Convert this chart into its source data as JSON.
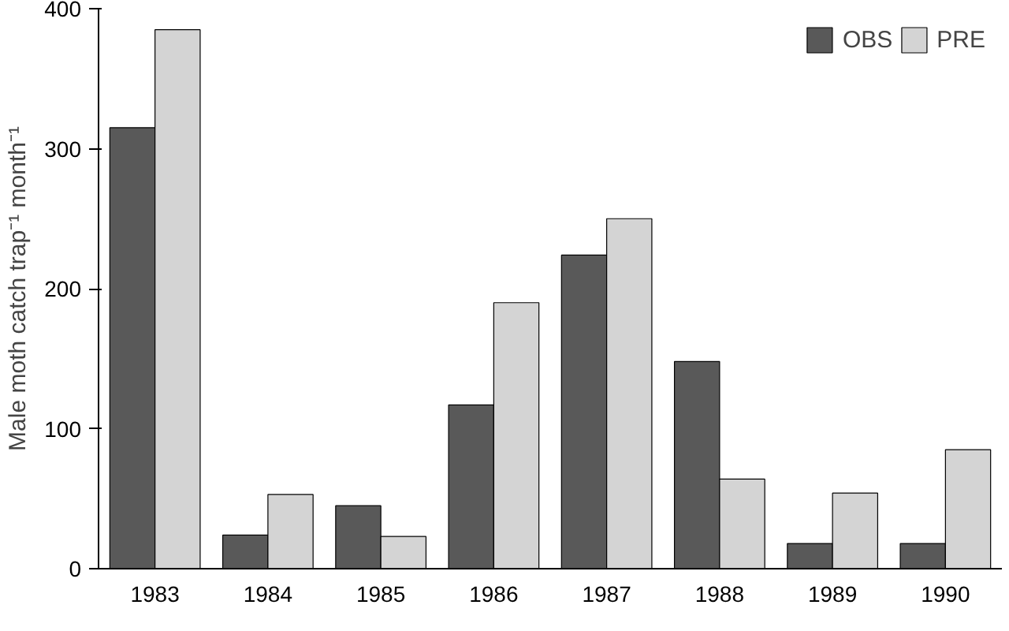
{
  "chart_data": {
    "type": "bar",
    "ylabel": "Male moth catch trap⁻¹ month⁻¹",
    "categories": [
      "1983",
      "1984",
      "1985",
      "1986",
      "1987",
      "1988",
      "1989",
      "1990"
    ],
    "series": [
      {
        "name": "OBS",
        "color": "#595959",
        "values": [
          315,
          24,
          45,
          117,
          224,
          148,
          18,
          18
        ]
      },
      {
        "name": "PRE",
        "color": "#d4d4d4",
        "values": [
          385,
          53,
          23,
          190,
          250,
          64,
          54,
          85
        ]
      }
    ],
    "ylim": [
      0,
      400
    ],
    "yticks": [
      0,
      100,
      200,
      300,
      400
    ],
    "grid": false,
    "legend": "top right"
  }
}
